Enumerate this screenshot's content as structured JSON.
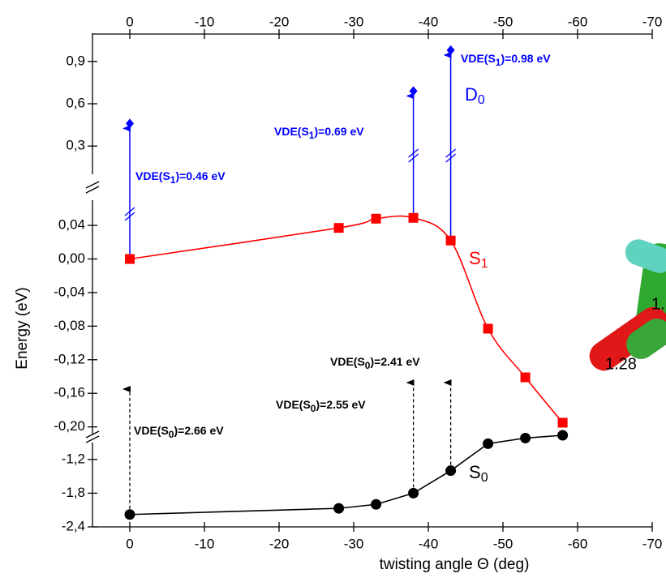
{
  "chart_data": {
    "type": "line",
    "xlabel": "twisting angle Θ (deg)",
    "ylabel": "Energy (eV)",
    "x": [
      0,
      -28,
      -33,
      -38,
      -43,
      -48,
      -53,
      -58
    ],
    "xlim": [
      5,
      -70
    ],
    "xticks": [
      0,
      -10,
      -20,
      -30,
      -40,
      -50,
      -60,
      -70
    ],
    "ylim": [
      -0.21,
      0.07
    ],
    "yticks": [
      {
        "value": 0.04,
        "label": "0,04"
      },
      {
        "value": 0.0,
        "label": "0,00"
      },
      {
        "value": -0.04,
        "label": "-0,04"
      },
      {
        "value": -0.08,
        "label": "-0,08"
      },
      {
        "value": -0.12,
        "label": "-0,12"
      },
      {
        "value": -0.16,
        "label": "-0,16"
      },
      {
        "value": -0.2,
        "label": "-0,20"
      }
    ],
    "y2lim": [
      0.1,
      1.1
    ],
    "y2ticks": [
      {
        "value": 0.3,
        "label": "0,3"
      },
      {
        "value": 0.6,
        "label": "0,6"
      },
      {
        "value": 0.9,
        "label": "0,9"
      }
    ],
    "y3lim": [
      -2.4,
      -0.9
    ],
    "y3ticks": [
      {
        "value": -1.2,
        "label": "-1,2"
      },
      {
        "value": -1.8,
        "label": "-1,8"
      },
      {
        "value": -2.4,
        "label": "-2,4"
      }
    ],
    "series": [
      {
        "label": {
          "text": "S",
          "sub": "1"
        },
        "color": "#ff0000",
        "marker": "square",
        "smooth": true,
        "axis": "y",
        "values": [
          0.0,
          0.037,
          0.048,
          0.049,
          0.022,
          -0.083,
          -0.141,
          -0.195
        ]
      },
      {
        "label": {
          "text": "S",
          "sub": "0"
        },
        "color": "#000000",
        "marker": "circle",
        "smooth": false,
        "axis": "y3",
        "values": [
          -2.18,
          -2.07,
          -2.0,
          -1.8,
          -1.4,
          -0.92,
          -0.82,
          -0.77
        ]
      },
      {
        "label": {
          "text": "D",
          "sub": "0"
        },
        "color": "#0000ff",
        "marker": "diamond",
        "axis": "y2",
        "values": [
          0.46,
          null,
          null,
          0.69,
          0.98,
          null,
          null,
          null
        ]
      }
    ],
    "annotations": [
      {
        "prefix": "VDE(S",
        "sub": "1",
        "suffix": ")=0.46 eV",
        "color": "#0000ff"
      },
      {
        "prefix": "VDE(S",
        "sub": "1",
        "suffix": ")=0.69 eV",
        "color": "#0000ff"
      },
      {
        "prefix": "VDE(S",
        "sub": "1",
        "suffix": ")=0.98 eV",
        "color": "#0000ff"
      },
      {
        "prefix": "VDE(S",
        "sub": "0",
        "suffix": ")=2.41 eV",
        "color": "#000000"
      },
      {
        "prefix": "VDE(S",
        "sub": "0",
        "suffix": ")=2.55 eV",
        "color": "#000000"
      },
      {
        "prefix": "VDE(S",
        "sub": "0",
        "suffix": ")=2.66 eV",
        "color": "#000000"
      }
    ]
  },
  "molecule_labels": [
    "1.",
    "1.28"
  ]
}
